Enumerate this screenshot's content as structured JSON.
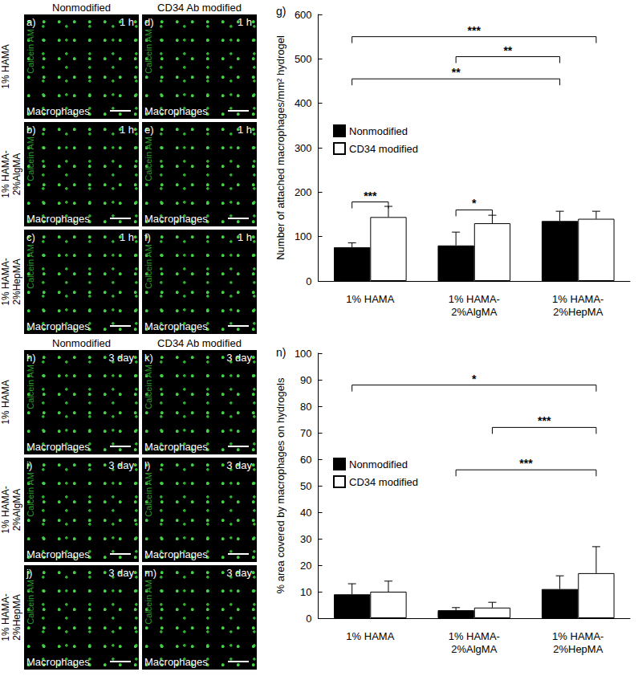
{
  "chart_data": [
    {
      "type": "bar",
      "title": "g)",
      "y_label": "Number of attached macrophages/mm² hydrogel",
      "categories": [
        "1% HAMA",
        "1% HAMA-\n2%AlgMA",
        "1% HAMA-\n2%HepMA"
      ],
      "series": [
        {
          "name": "Nonmodified",
          "color": "#000000",
          "values": [
            76,
            80,
            135
          ],
          "errors": [
            10,
            30,
            22
          ]
        },
        {
          "name": "CD34 modified",
          "color": "#ffffff",
          "values": [
            144,
            130,
            140
          ],
          "errors": [
            24,
            18,
            17
          ]
        }
      ],
      "ylim": [
        0,
        600
      ],
      "yticks": [
        0,
        100,
        200,
        300,
        400,
        500,
        600
      ],
      "grid": false,
      "legend": "upper left",
      "significance": [
        {
          "label": "***",
          "from": {
            "category": "1% HAMA",
            "series": "Nonmodified"
          },
          "to": {
            "category": "1% HAMA-\n2%HepMA",
            "series": "CD34 modified"
          },
          "y": 550
        },
        {
          "label": "**",
          "from": {
            "category": "1% HAMA-\n2%AlgMA",
            "series": "Nonmodified"
          },
          "to": {
            "category": "1% HAMA-\n2%HepMA",
            "series": "Nonmodified"
          },
          "y": 505
        },
        {
          "label": "**",
          "from": {
            "category": "1% HAMA",
            "series": "Nonmodified"
          },
          "to": {
            "category": "1% HAMA-\n2%HepMA",
            "series": "Nonmodified"
          },
          "y": 455
        },
        {
          "label": "***",
          "from": {
            "category": "1% HAMA",
            "series": "Nonmodified"
          },
          "to": {
            "category": "1% HAMA",
            "series": "CD34 modified"
          },
          "y": 178
        },
        {
          "label": "*",
          "from": {
            "category": "1% HAMA-\n2%AlgMA",
            "series": "Nonmodified"
          },
          "to": {
            "category": "1% HAMA-\n2%AlgMA",
            "series": "CD34 modified"
          },
          "y": 160
        }
      ]
    },
    {
      "type": "bar",
      "title": "n)",
      "y_label": "% area covered by macrophages on hydrogels",
      "categories": [
        "1% HAMA",
        "1% HAMA-\n2%AlgMA",
        "1% HAMA-\n2%HepMA"
      ],
      "series": [
        {
          "name": "Nonmodified",
          "color": "#000000",
          "values": [
            9,
            3,
            11
          ],
          "errors": [
            4,
            1,
            5
          ]
        },
        {
          "name": "CD34 modified",
          "color": "#ffffff",
          "values": [
            10,
            4,
            17
          ],
          "errors": [
            4,
            2,
            10
          ]
        }
      ],
      "ylim": [
        0,
        100
      ],
      "yticks": [
        0,
        10,
        20,
        30,
        40,
        50,
        60,
        70,
        80,
        90,
        100
      ],
      "grid": false,
      "legend": "upper left",
      "significance": [
        {
          "label": "*",
          "from": {
            "category": "1% HAMA",
            "series": "Nonmodified"
          },
          "to": {
            "category": "1% HAMA-\n2%HepMA",
            "series": "CD34 modified"
          },
          "y": 88
        },
        {
          "label": "***",
          "from": {
            "category": "1% HAMA-\n2%AlgMA",
            "series": "CD34 modified"
          },
          "to": {
            "category": "1% HAMA-\n2%HepMA",
            "series": "CD34 modified"
          },
          "y": 72
        },
        {
          "label": "***",
          "from": {
            "category": "1% HAMA-\n2%AlgMA",
            "series": "Nonmodified"
          },
          "to": {
            "category": "1% HAMA-\n2%HepMA",
            "series": "CD34 modified"
          },
          "y": 56
        }
      ]
    }
  ],
  "micrographs": [
    {
      "time": "1 h",
      "stain": "Calcein AM",
      "cells": "Macrophages",
      "columns": [
        "Nonmodified",
        "CD34 Ab modified"
      ],
      "rows": [
        "1% HAMA",
        "1% HAMA-\n2%AlgMA",
        "1% HAMA-\n2%HepMA"
      ],
      "panels": [
        [
          "a)",
          "d)"
        ],
        [
          "b)",
          "e)"
        ],
        [
          "c)",
          "f)"
        ]
      ]
    },
    {
      "time": "3 day",
      "stain": "Calcein AM",
      "cells": "Macrophages",
      "columns": [
        "Nonmodified",
        "CD34 Ab modified"
      ],
      "rows": [
        "1% HAMA",
        "1% HAMA-\n2%AlgMA",
        "1% HAMA-\n2%HepMA"
      ],
      "panels": [
        [
          "h)",
          "k)"
        ],
        [
          "i)",
          "l)"
        ],
        [
          "j)",
          "m)"
        ]
      ]
    }
  ]
}
